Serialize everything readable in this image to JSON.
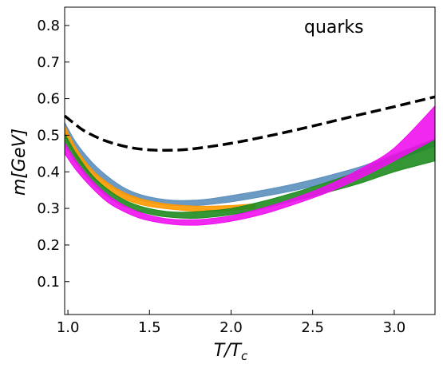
{
  "chart_data": {
    "type": "area",
    "title": "",
    "annotation": "quarks",
    "xlabel_base": "T/T",
    "xlabel_sub": "c",
    "ylabel": "m[GeV]",
    "xlim": [
      0.98,
      3.25
    ],
    "ylim": [
      0.01,
      0.85
    ],
    "xticks": [
      1.0,
      1.5,
      2.0,
      2.5,
      3.0
    ],
    "xtick_labels": [
      "1.0",
      "1.5",
      "2.0",
      "2.5",
      "3.0"
    ],
    "yticks": [
      0.1,
      0.2,
      0.3,
      0.4,
      0.5,
      0.6,
      0.7,
      0.8
    ],
    "ytick_labels": [
      "0.1",
      "0.2",
      "0.3",
      "0.4",
      "0.5",
      "0.6",
      "0.7",
      "0.8"
    ],
    "grid": false,
    "legend": "none",
    "line": {
      "style": "dashed",
      "color": "#000000",
      "x": [
        0.98,
        1.05,
        1.1,
        1.2,
        1.3,
        1.4,
        1.5,
        1.6,
        1.75,
        2.0,
        2.25,
        2.5,
        2.75,
        3.0,
        3.25
      ],
      "y": [
        0.553,
        0.528,
        0.512,
        0.49,
        0.475,
        0.465,
        0.46,
        0.459,
        0.462,
        0.478,
        0.5,
        0.525,
        0.552,
        0.578,
        0.605
      ]
    },
    "series": [
      {
        "color": "#5b8fbd",
        "x": [
          0.98,
          1.05,
          1.15,
          1.25,
          1.35,
          1.45,
          1.55,
          1.65,
          1.75,
          1.85,
          2.0,
          2.2,
          2.4,
          2.6,
          2.8,
          3.0,
          3.25
        ],
        "lower": [
          0.5,
          0.45,
          0.4,
          0.365,
          0.338,
          0.322,
          0.313,
          0.308,
          0.307,
          0.31,
          0.318,
          0.333,
          0.35,
          0.372,
          0.398,
          0.43,
          0.47
        ],
        "upper": [
          0.535,
          0.48,
          0.425,
          0.385,
          0.355,
          0.337,
          0.327,
          0.322,
          0.322,
          0.325,
          0.335,
          0.35,
          0.368,
          0.39,
          0.415,
          0.448,
          0.49
        ]
      },
      {
        "color": "#ff9900",
        "x": [
          0.98,
          1.05,
          1.15,
          1.25,
          1.35,
          1.45,
          1.55,
          1.65,
          1.75,
          1.85,
          2.0,
          2.15
        ],
        "lower": [
          0.5,
          0.44,
          0.385,
          0.35,
          0.325,
          0.31,
          0.302,
          0.297,
          0.293,
          0.292,
          0.295,
          0.3
        ],
        "upper": [
          0.527,
          0.465,
          0.405,
          0.368,
          0.342,
          0.326,
          0.316,
          0.31,
          0.307,
          0.306,
          0.308,
          0.313
        ]
      },
      {
        "color": "#1f8b1f",
        "x": [
          0.98,
          1.05,
          1.15,
          1.25,
          1.35,
          1.45,
          1.55,
          1.65,
          1.75,
          1.85,
          2.0,
          2.2,
          2.4,
          2.6,
          2.8,
          3.0,
          3.25
        ],
        "lower": [
          0.475,
          0.425,
          0.37,
          0.33,
          0.305,
          0.29,
          0.28,
          0.275,
          0.273,
          0.275,
          0.283,
          0.3,
          0.322,
          0.345,
          0.37,
          0.4,
          0.43
        ],
        "upper": [
          0.505,
          0.45,
          0.39,
          0.35,
          0.322,
          0.305,
          0.295,
          0.29,
          0.29,
          0.293,
          0.3,
          0.32,
          0.345,
          0.373,
          0.405,
          0.445,
          0.49
        ]
      },
      {
        "color": "#ee11ee",
        "x": [
          0.98,
          1.05,
          1.15,
          1.25,
          1.35,
          1.45,
          1.55,
          1.65,
          1.75,
          1.85,
          2.0,
          2.2,
          2.4,
          2.6,
          2.8,
          3.0,
          3.25
        ],
        "lower": [
          0.45,
          0.405,
          0.355,
          0.315,
          0.29,
          0.272,
          0.262,
          0.256,
          0.254,
          0.256,
          0.265,
          0.285,
          0.313,
          0.345,
          0.385,
          0.43,
          0.49
        ],
        "upper": [
          0.48,
          0.43,
          0.375,
          0.335,
          0.307,
          0.288,
          0.276,
          0.27,
          0.269,
          0.271,
          0.28,
          0.302,
          0.33,
          0.365,
          0.41,
          0.465,
          0.58
        ]
      }
    ]
  }
}
